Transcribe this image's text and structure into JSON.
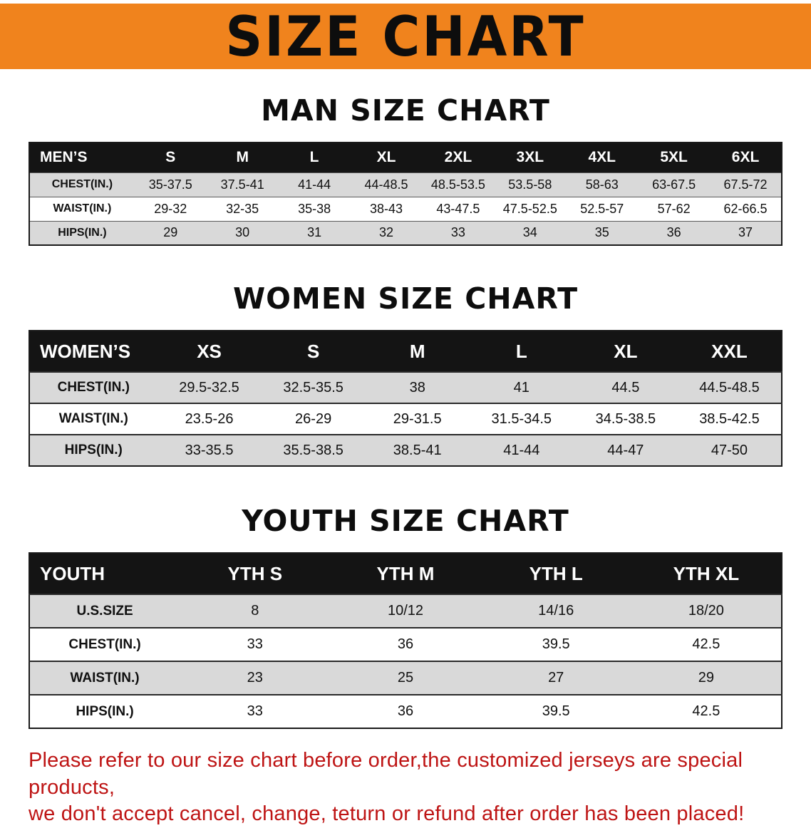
{
  "banner": {
    "title": "SIZE CHART"
  },
  "colors": {
    "banner_bg": "#F0831D",
    "header_bg": "#141414",
    "row_gray": "#D9D9D9",
    "disclaimer_red": "#BE1414"
  },
  "sections": [
    {
      "heading": "MAN SIZE CHART",
      "table": {
        "header": [
          "MEN’S",
          "S",
          "M",
          "L",
          "XL",
          "2XL",
          "3XL",
          "4XL",
          "5XL",
          "6XL"
        ],
        "rows": [
          {
            "label": "CHEST(IN.)",
            "values": [
              "35-37.5",
              "37.5-41",
              "41-44",
              "44-48.5",
              "48.5-53.5",
              "53.5-58",
              "58-63",
              "63-67.5",
              "67.5-72"
            ]
          },
          {
            "label": "WAIST(IN.)",
            "values": [
              "29-32",
              "32-35",
              "35-38",
              "38-43",
              "43-47.5",
              "47.5-52.5",
              "52.5-57",
              "57-62",
              "62-66.5"
            ]
          },
          {
            "label": "HIPS(IN.)",
            "values": [
              "29",
              "30",
              "31",
              "32",
              "33",
              "34",
              "35",
              "36",
              "37"
            ]
          }
        ]
      }
    },
    {
      "heading": "WOMEN SIZE CHART",
      "table": {
        "header": [
          "WOMEN’S",
          "XS",
          "S",
          "M",
          "L",
          "XL",
          "XXL"
        ],
        "rows": [
          {
            "label": "CHEST(IN.)",
            "values": [
              "29.5-32.5",
              "32.5-35.5",
              "38",
              "41",
              "44.5",
              "44.5-48.5"
            ]
          },
          {
            "label": "WAIST(IN.)",
            "values": [
              "23.5-26",
              "26-29",
              "29-31.5",
              "31.5-34.5",
              "34.5-38.5",
              "38.5-42.5"
            ]
          },
          {
            "label": "HIPS(IN.)",
            "values": [
              "33-35.5",
              "35.5-38.5",
              "38.5-41",
              "41-44",
              "44-47",
              "47-50"
            ]
          }
        ]
      }
    },
    {
      "heading": "YOUTH SIZE CHART",
      "table": {
        "header": [
          "YOUTH",
          "YTH S",
          "YTH M",
          "YTH L",
          "YTH XL"
        ],
        "rows": [
          {
            "label": "U.S.SIZE",
            "values": [
              "8",
              "10/12",
              "14/16",
              "18/20"
            ]
          },
          {
            "label": "CHEST(IN.)",
            "values": [
              "33",
              "36",
              "39.5",
              "42.5"
            ]
          },
          {
            "label": "WAIST(IN.)",
            "values": [
              "23",
              "25",
              "27",
              "29"
            ]
          },
          {
            "label": "HIPS(IN.)",
            "values": [
              "33",
              "36",
              "39.5",
              "42.5"
            ]
          }
        ]
      }
    }
  ],
  "disclaimer": {
    "line1": "Please refer to our size chart before order,the customized jerseys are special products,",
    "line2": "we don't accept cancel, change, teturn or refund after order has been placed!"
  }
}
